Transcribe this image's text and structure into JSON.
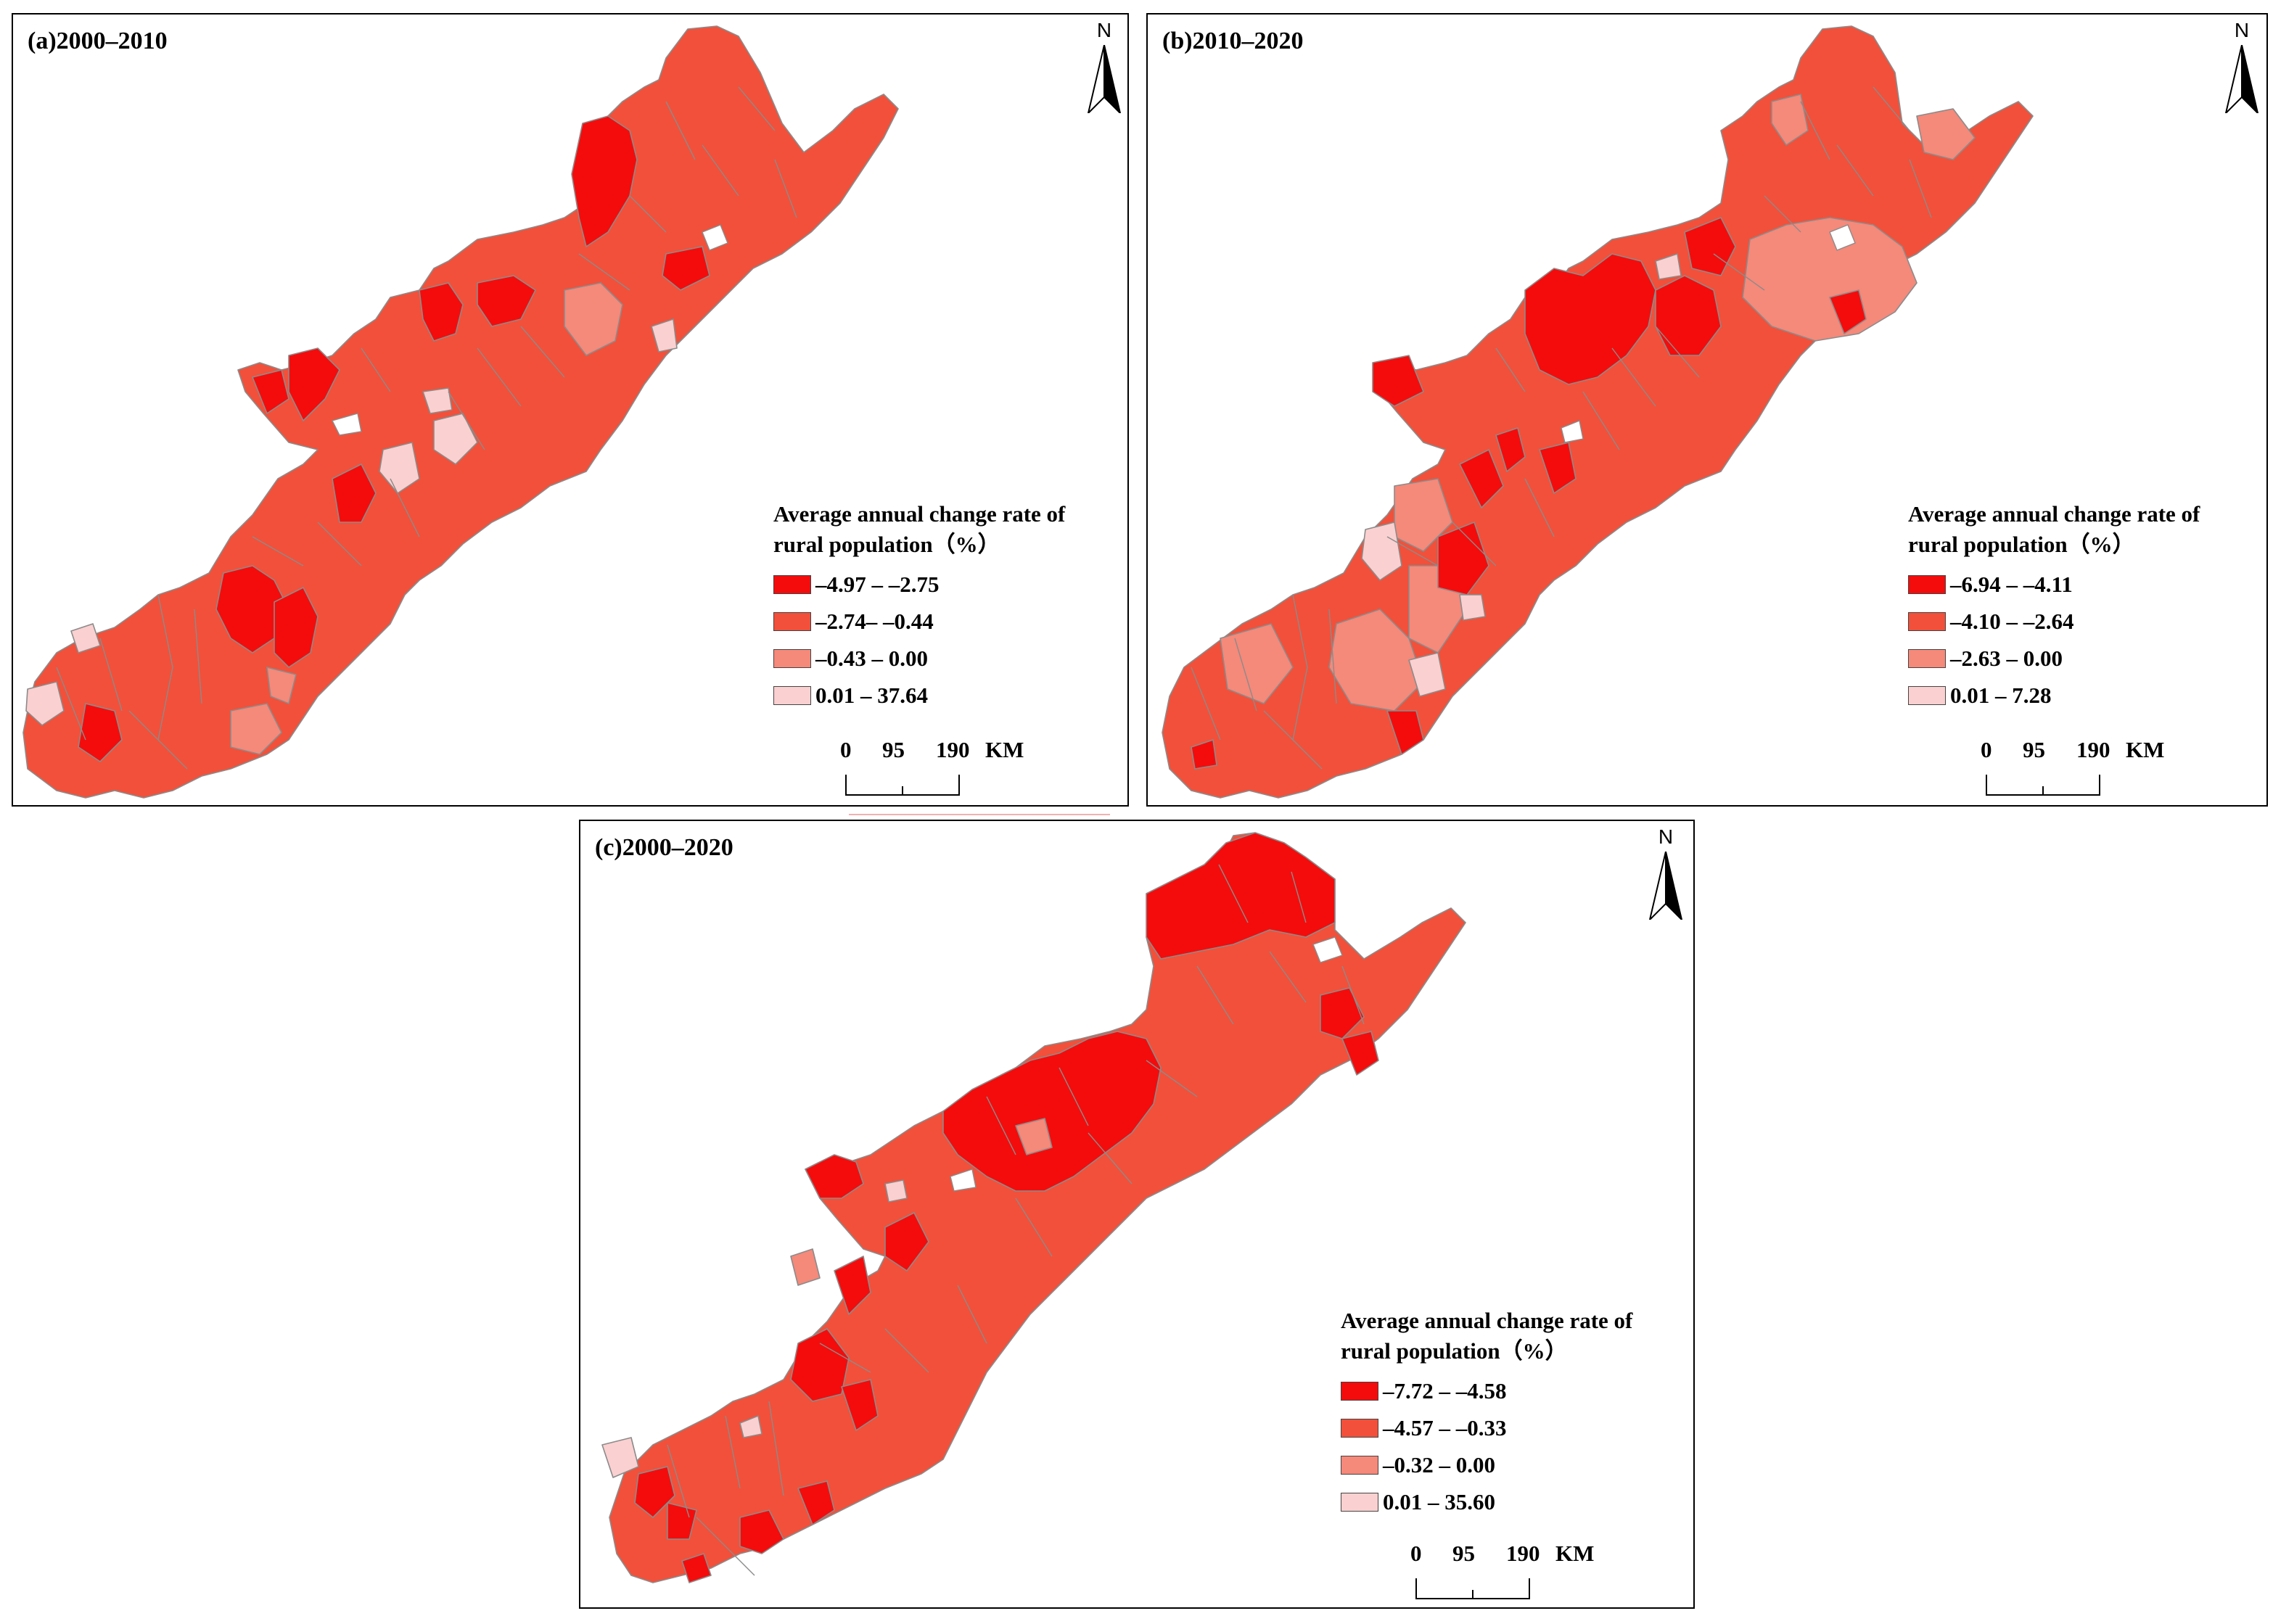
{
  "panels": [
    {
      "id": "a",
      "title": "(a)2000–2010",
      "north_label": "N",
      "legend": {
        "title_line1": "Average annual change rate of",
        "title_line2": "rural population（%）",
        "classes": [
          {
            "label": "–4.97 – –2.75",
            "color": "#f40c0c"
          },
          {
            "label": "–2.74– –0.44",
            "color": "#f2503a"
          },
          {
            "label": "–0.43 – 0.00",
            "color": "#f5897a"
          },
          {
            "label": "0.01 – 37.64",
            "color": "#fbd0d0"
          }
        ]
      },
      "scalebar": {
        "ticks": [
          "0",
          "95",
          "190"
        ],
        "unit": "KM"
      }
    },
    {
      "id": "b",
      "title": "(b)2010–2020",
      "north_label": "N",
      "legend": {
        "title_line1": "Average annual change rate of",
        "title_line2": "rural population（%）",
        "classes": [
          {
            "label": "–6.94 – –4.11",
            "color": "#f40c0c"
          },
          {
            "label": "–4.10 – –2.64",
            "color": "#f2503a"
          },
          {
            "label": "–2.63 – 0.00",
            "color": "#f5897a"
          },
          {
            "label": "0.01 – 7.28",
            "color": "#fbd0d0"
          }
        ]
      },
      "scalebar": {
        "ticks": [
          "0",
          "95",
          "190"
        ],
        "unit": "KM"
      }
    },
    {
      "id": "c",
      "title": "(c)2000–2020",
      "north_label": "N",
      "legend": {
        "title_line1": "Average annual change rate of",
        "title_line2": "rural population（%）",
        "classes": [
          {
            "label": "–7.72 – –4.58",
            "color": "#f40c0c"
          },
          {
            "label": "–4.57 – –0.33",
            "color": "#f2503a"
          },
          {
            "label": "–0.32 – 0.00",
            "color": "#f5897a"
          },
          {
            "label": "0.01 – 35.60",
            "color": "#fbd0d0"
          }
        ]
      },
      "scalebar": {
        "ticks": [
          "0",
          "95",
          "190"
        ],
        "unit": "KM"
      }
    }
  ]
}
